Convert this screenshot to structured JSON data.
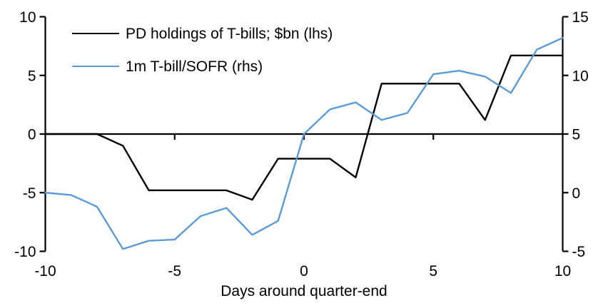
{
  "chart_data": {
    "type": "line",
    "x": [
      -10,
      -9,
      -8,
      -7,
      -6,
      -5,
      -4,
      -3,
      -2,
      -1,
      0,
      1,
      2,
      3,
      4,
      5,
      6,
      7,
      8,
      9,
      10
    ],
    "series": [
      {
        "name": "PD holdings of T-bills; $bn (lhs)",
        "axis": "left",
        "color": "#000000",
        "values": [
          0,
          0,
          0,
          -1.0,
          -4.8,
          -4.8,
          -4.8,
          -4.8,
          -5.6,
          -2.1,
          -2.1,
          -2.1,
          -3.7,
          4.3,
          4.3,
          4.3,
          4.3,
          1.2,
          6.7,
          6.7,
          6.7
        ]
      },
      {
        "name": "1m T-bill/SOFR (rhs)",
        "axis": "right",
        "color": "#5B9BD5",
        "values": [
          0.0,
          -0.2,
          -1.2,
          -4.8,
          -4.1,
          -4.0,
          -2.0,
          -1.3,
          -3.6,
          -2.4,
          5.0,
          7.1,
          7.7,
          6.2,
          6.8,
          10.1,
          10.4,
          9.9,
          8.5,
          12.2,
          13.2
        ]
      }
    ],
    "title": "",
    "xlabel": "Days around quarter-end",
    "left_axis": {
      "range": [
        -10,
        10
      ],
      "ticks": [
        10,
        5,
        0,
        -5,
        -10
      ]
    },
    "right_axis": {
      "range": [
        -5,
        15
      ],
      "ticks": [
        15,
        10,
        5,
        0,
        -5
      ]
    },
    "x_axis": {
      "range": [
        -10,
        10
      ],
      "tick_labels": [
        -10,
        -5,
        0,
        5,
        10
      ],
      "tick_marks": [
        -5,
        0,
        5
      ]
    },
    "grid": false,
    "legend_position": "top-left-inside",
    "axis_color": "#000000",
    "background": "#ffffff"
  }
}
